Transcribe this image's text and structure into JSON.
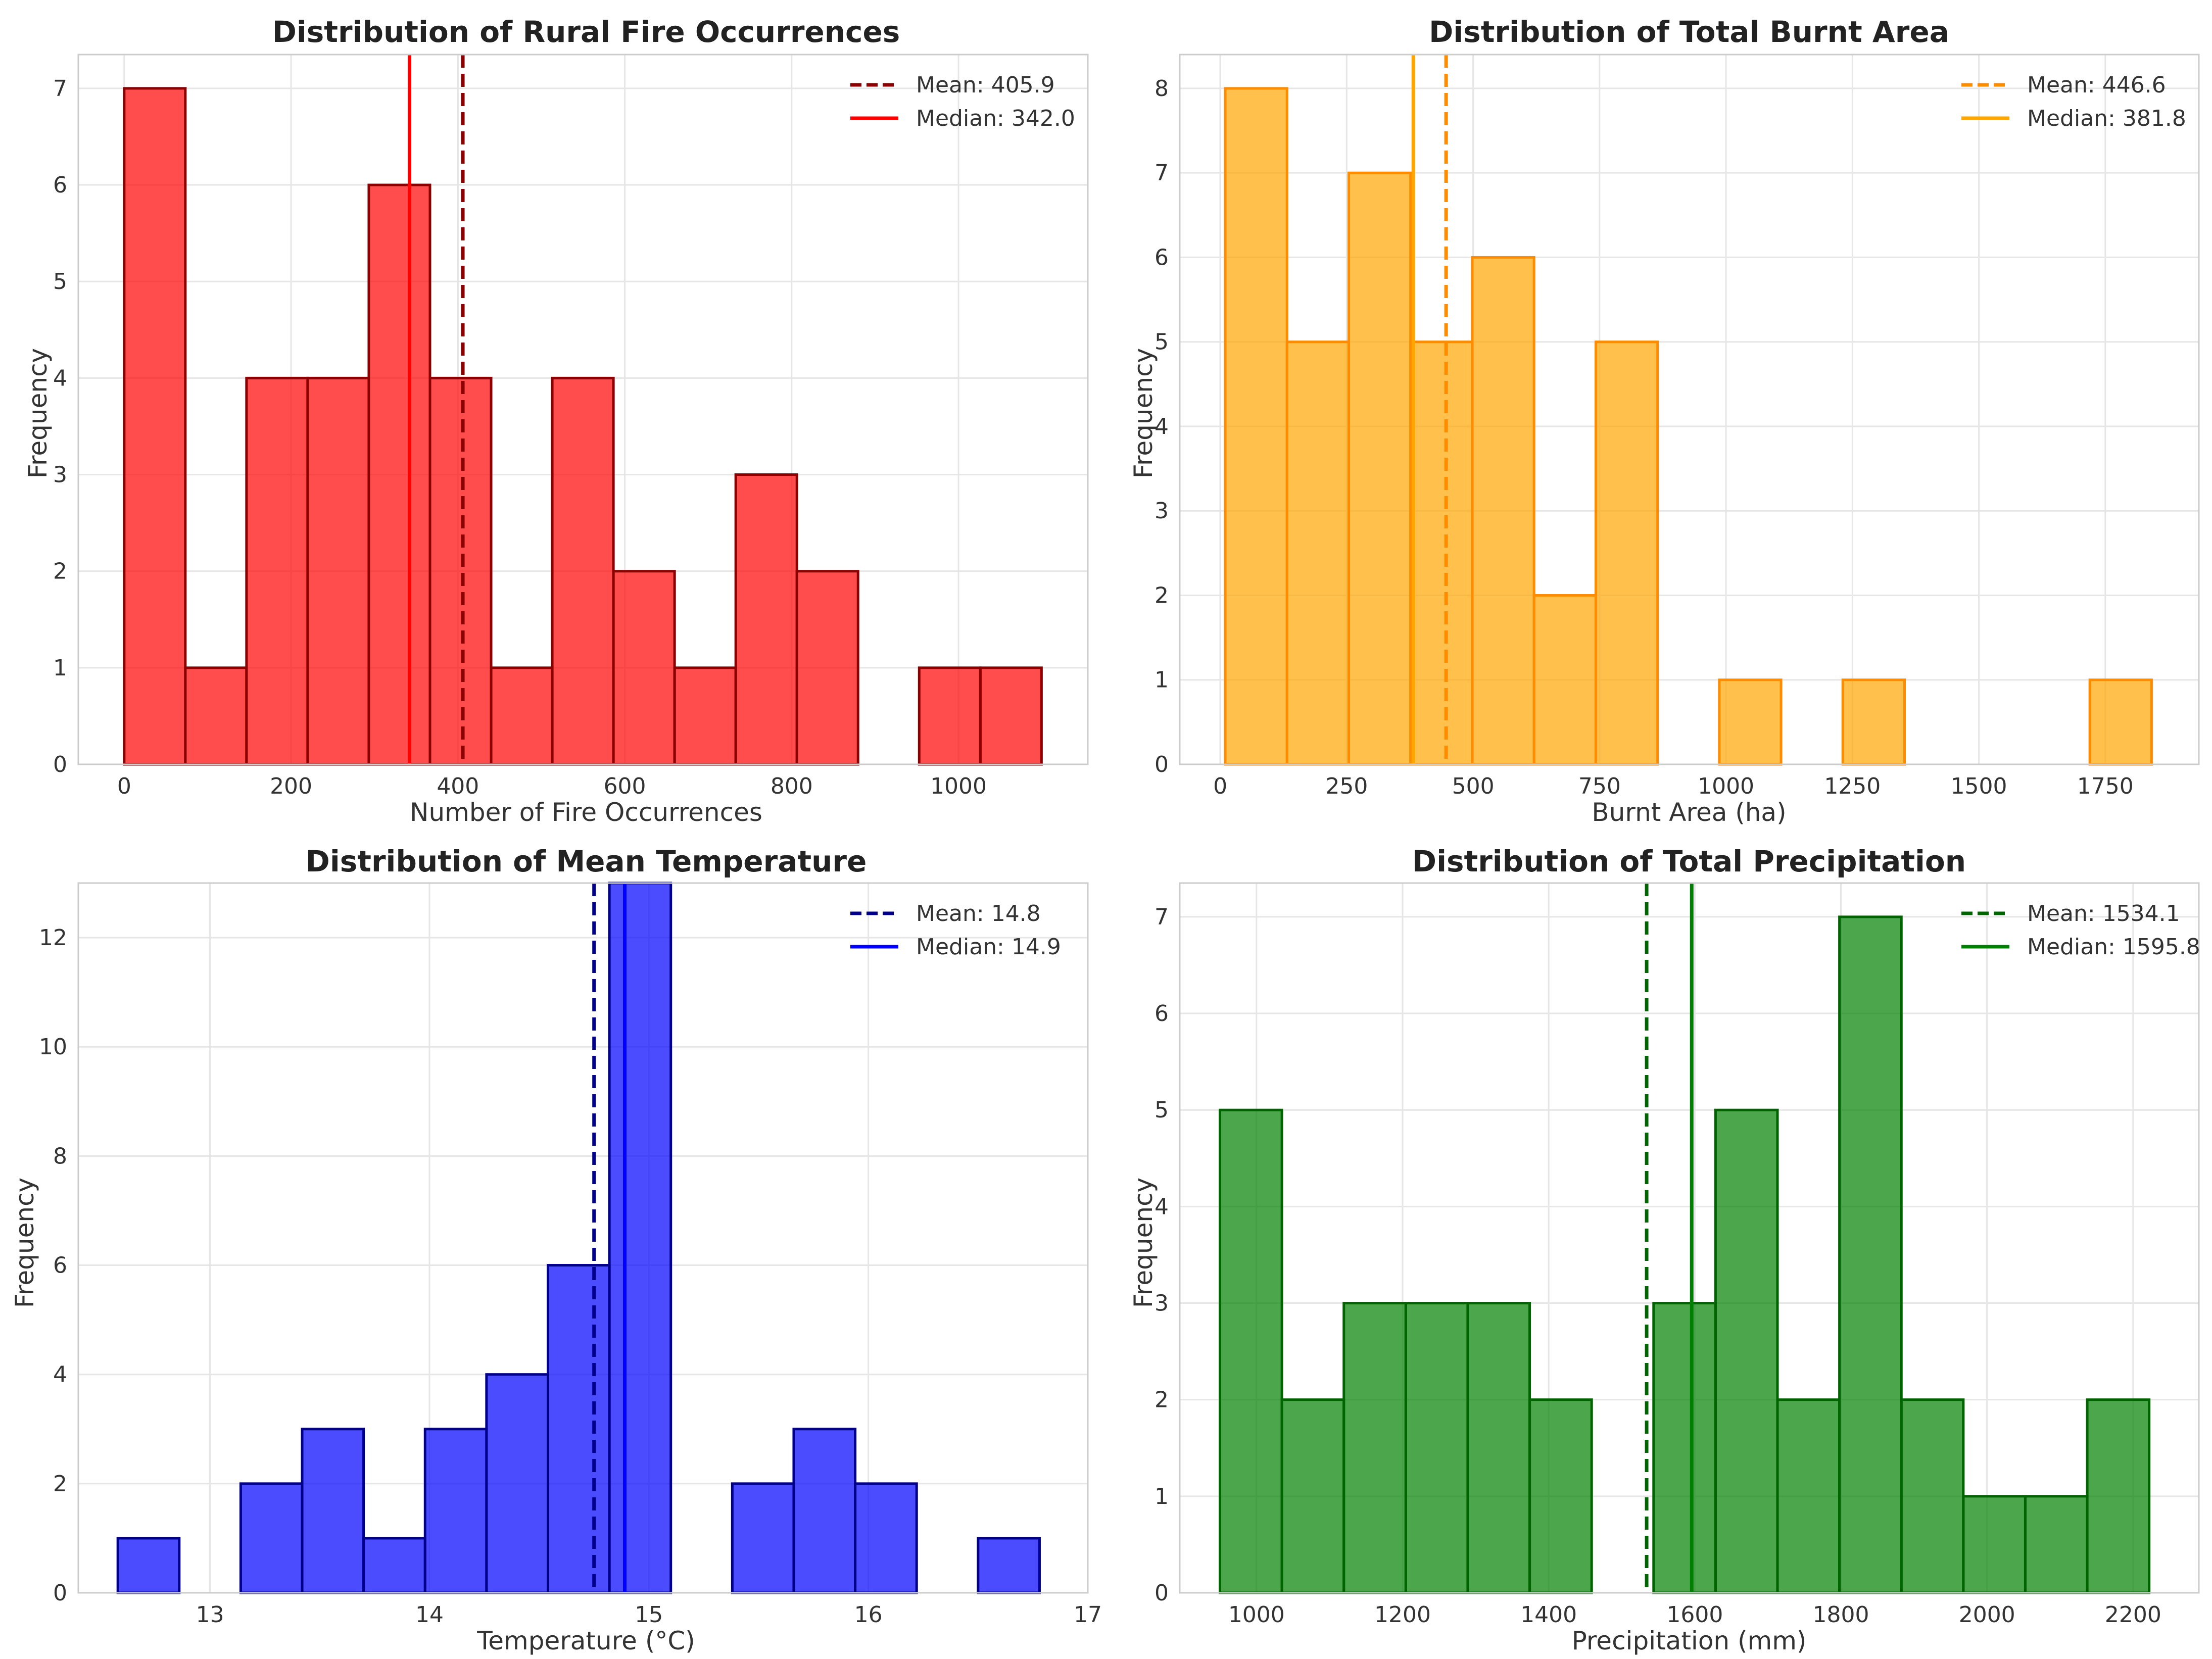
{
  "chart_data": [
    {
      "type": "bar",
      "title": "Distribution of Rural Fire Occurrences",
      "xlabel": "Number of Fire Occurrences",
      "ylabel": "Frequency",
      "xlim": [
        -55,
        1155
      ],
      "ylim": [
        0,
        7.35
      ],
      "xticks": [
        0,
        200,
        400,
        600,
        800,
        1000
      ],
      "yticks": [
        0,
        1,
        2,
        3,
        4,
        5,
        6,
        7
      ],
      "bin_start": 0,
      "bin_width": 73.3,
      "values": [
        7,
        1,
        4,
        4,
        6,
        4,
        1,
        4,
        2,
        1,
        3,
        2,
        0,
        1,
        1
      ],
      "bar_color": "#ff0000",
      "edge_color": "#8b0000",
      "grid": true,
      "legend_position": "top-right",
      "lines": [
        {
          "label": "Mean: 405.9",
          "value": 405.9,
          "style": "dashed",
          "color": "#8b0000"
        },
        {
          "label": "Median: 342.0",
          "value": 342.0,
          "style": "solid",
          "color": "#ff0000"
        }
      ]
    },
    {
      "type": "bar",
      "title": "Distribution of Total Burnt Area",
      "xlabel": "Burnt Area (ha)",
      "ylabel": "Frequency",
      "xlim": [
        -80,
        1935
      ],
      "ylim": [
        0,
        8.4
      ],
      "xticks": [
        0,
        250,
        500,
        750,
        1000,
        1250,
        1500,
        1750
      ],
      "yticks": [
        0,
        1,
        2,
        3,
        4,
        5,
        6,
        7,
        8
      ],
      "bin_start": 10,
      "bin_width": 122.1,
      "values": [
        8,
        5,
        7,
        5,
        6,
        2,
        5,
        0,
        1,
        0,
        1,
        0,
        0,
        0,
        1
      ],
      "bar_color": "#ffa500",
      "edge_color": "#ff8c00",
      "grid": true,
      "legend_position": "top-right",
      "lines": [
        {
          "label": "Mean: 446.6",
          "value": 446.6,
          "style": "dashed",
          "color": "#ff8c00"
        },
        {
          "label": "Median: 381.8",
          "value": 381.8,
          "style": "solid",
          "color": "#ffa500"
        }
      ]
    },
    {
      "type": "bar",
      "title": "Distribution of Mean Temperature",
      "xlabel": "Temperature (°C)",
      "ylabel": "Frequency",
      "xlim": [
        12.4,
        17.0
      ],
      "ylim": [
        0,
        13.0
      ],
      "xticks": [
        13,
        14,
        15,
        16,
        17
      ],
      "yticks": [
        0,
        2,
        4,
        6,
        8,
        10,
        12
      ],
      "bin_start": 12.58,
      "bin_width": 0.28,
      "values": [
        1,
        0,
        2,
        3,
        1,
        3,
        4,
        6,
        13,
        0,
        2,
        3,
        2,
        0,
        1
      ],
      "bar_color": "#0000ff",
      "edge_color": "#00008b",
      "grid": true,
      "legend_position": "top-right",
      "lines": [
        {
          "label": "Mean: 14.8",
          "value": 14.75,
          "style": "dashed",
          "color": "#00008b"
        },
        {
          "label": "Median: 14.9",
          "value": 14.89,
          "style": "solid",
          "color": "#0000ff"
        }
      ]
    },
    {
      "type": "bar",
      "title": "Distribution of Total Precipitation",
      "xlabel": "Precipitation (mm)",
      "ylabel": "Frequency",
      "xlim": [
        895,
        2290
      ],
      "ylim": [
        0,
        7.35
      ],
      "xticks": [
        1000,
        1200,
        1400,
        1600,
        1800,
        2000,
        2200
      ],
      "yticks": [
        0,
        1,
        2,
        3,
        4,
        5,
        6,
        7
      ],
      "bin_start": 950,
      "bin_width": 84.8,
      "values": [
        5,
        2,
        3,
        3,
        3,
        2,
        0,
        3,
        5,
        2,
        7,
        2,
        1,
        1,
        2
      ],
      "bar_color": "#008000",
      "edge_color": "#006400",
      "grid": true,
      "legend_position": "top-right",
      "lines": [
        {
          "label": "Mean: 1534.1",
          "value": 1534.1,
          "style": "dashed",
          "color": "#006400"
        },
        {
          "label": "Median: 1595.8",
          "value": 1595.8,
          "style": "solid",
          "color": "#008000"
        }
      ]
    }
  ]
}
